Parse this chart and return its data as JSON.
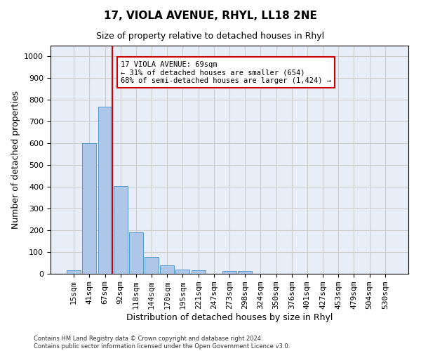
{
  "title": "17, VIOLA AVENUE, RHYL, LL18 2NE",
  "subtitle": "Size of property relative to detached houses in Rhyl",
  "xlabel": "Distribution of detached houses by size in Rhyl",
  "ylabel": "Number of detached properties",
  "categories": [
    "15sqm",
    "41sqm",
    "67sqm",
    "92sqm",
    "118sqm",
    "144sqm",
    "170sqm",
    "195sqm",
    "221sqm",
    "247sqm",
    "273sqm",
    "298sqm",
    "324sqm",
    "350sqm",
    "376sqm",
    "401sqm",
    "427sqm",
    "453sqm",
    "479sqm",
    "504sqm",
    "530sqm"
  ],
  "values": [
    15,
    600,
    770,
    405,
    190,
    78,
    40,
    18,
    15,
    0,
    12,
    12,
    0,
    0,
    0,
    0,
    0,
    0,
    0,
    0,
    0
  ],
  "bar_color": "#aec6e8",
  "bar_edgecolor": "#5599cc",
  "vline_color": "#cc0000",
  "annotation_text": "17 VIOLA AVENUE: 69sqm\n← 31% of detached houses are smaller (654)\n68% of semi-detached houses are larger (1,424) →",
  "annotation_box_color": "#ffffff",
  "annotation_box_edgecolor": "#cc0000",
  "ylim": [
    0,
    1050
  ],
  "yticks": [
    0,
    100,
    200,
    300,
    400,
    500,
    600,
    700,
    800,
    900,
    1000
  ],
  "grid_color": "#cccccc",
  "bg_color": "#e8eef8",
  "footer_line1": "Contains HM Land Registry data © Crown copyright and database right 2024.",
  "footer_line2": "Contains public sector information licensed under the Open Government Licence v3.0.",
  "title_fontsize": 11,
  "subtitle_fontsize": 9,
  "xlabel_fontsize": 9,
  "ylabel_fontsize": 9,
  "tick_fontsize": 8,
  "footer_fontsize": 6
}
